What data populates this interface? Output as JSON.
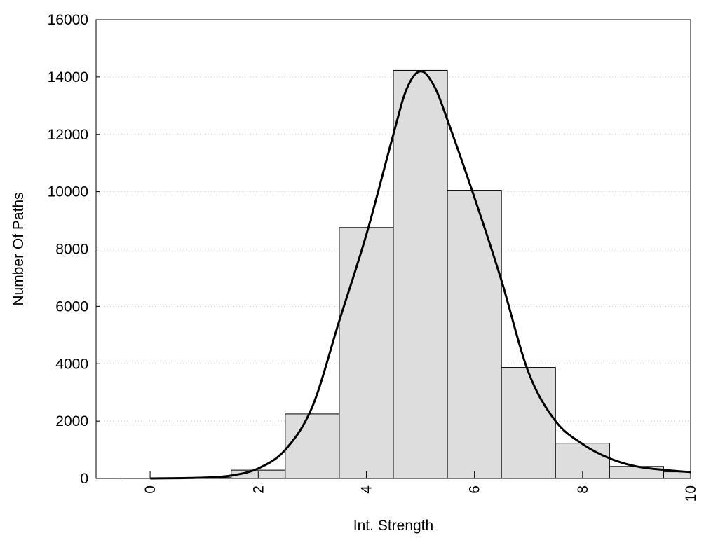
{
  "chart_data": {
    "type": "bar",
    "title": "",
    "xlabel": "Int. Strength",
    "ylabel": "Number Of Paths",
    "xlim": [
      -1,
      10
    ],
    "ylim": [
      0,
      16000
    ],
    "xticks": [
      "0",
      "2",
      "4",
      "6",
      "8",
      "10"
    ],
    "yticks": [
      "0",
      "2000",
      "4000",
      "6000",
      "8000",
      "10000",
      "12000",
      "14000",
      "16000"
    ],
    "grid": "horizontal dotted",
    "bar_color": "#dddddd",
    "curve_color": "#000000",
    "bars": [
      {
        "x": 0,
        "value": 10
      },
      {
        "x": 1,
        "value": 30
      },
      {
        "x": 2,
        "value": 290
      },
      {
        "x": 3,
        "value": 2250
      },
      {
        "x": 4,
        "value": 8750
      },
      {
        "x": 5,
        "value": 14230
      },
      {
        "x": 6,
        "value": 10050
      },
      {
        "x": 7,
        "value": 3870
      },
      {
        "x": 8,
        "value": 1230
      },
      {
        "x": 9,
        "value": 420
      },
      {
        "x": 10,
        "value": 230
      }
    ],
    "curve": {
      "x": [
        0,
        0.5,
        1,
        1.5,
        2,
        2.5,
        3,
        3.5,
        4,
        4.5,
        4.75,
        5,
        5.25,
        5.5,
        6,
        6.5,
        7,
        7.5,
        8,
        8.5,
        9,
        9.5,
        10
      ],
      "y": [
        0,
        10,
        30,
        100,
        350,
        1000,
        2500,
        5500,
        8500,
        12000,
        13600,
        14200,
        13700,
        12500,
        9800,
        6900,
        3700,
        2000,
        1200,
        700,
        420,
        300,
        220
      ]
    }
  }
}
